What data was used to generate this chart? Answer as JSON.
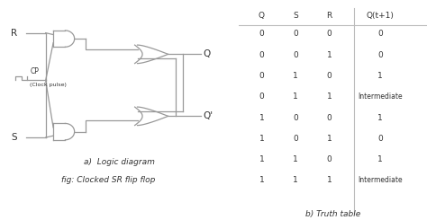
{
  "background_color": "#ffffff",
  "title_a": "a)  Logic diagram",
  "title_fig": "fig: Clocked SR flip flop",
  "title_b": "b) Truth table",
  "table_headers": [
    "Q",
    "S",
    "R",
    "Q(t+1)"
  ],
  "table_data": [
    [
      "0",
      "0",
      "0",
      "0"
    ],
    [
      "0",
      "0",
      "1",
      "0"
    ],
    [
      "0",
      "1",
      "0",
      "1"
    ],
    [
      "0",
      "1",
      "1",
      "Intermediate"
    ],
    [
      "1",
      "0",
      "0",
      "1"
    ],
    [
      "1",
      "0",
      "1",
      "0"
    ],
    [
      "1",
      "1",
      "0",
      "1"
    ],
    [
      "1",
      "1",
      "1",
      "Intermediate"
    ]
  ],
  "line_color": "#999999",
  "text_color": "#333333",
  "font_size": 6.5
}
